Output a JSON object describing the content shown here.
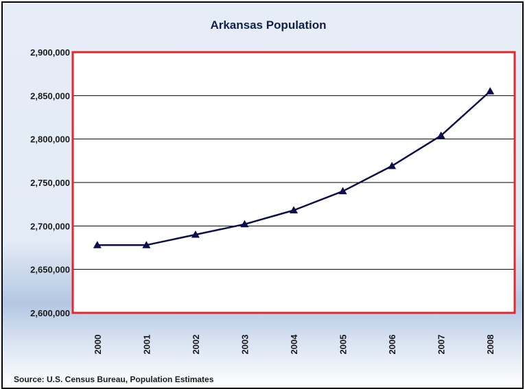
{
  "chart_data": {
    "type": "line",
    "title": "Arkansas Population",
    "xlabel": "",
    "ylabel": "",
    "categories": [
      "2000",
      "2001",
      "2002",
      "2003",
      "2004",
      "2005",
      "2006",
      "2007",
      "2008"
    ],
    "series": [
      {
        "values": [
          2678000,
          2678000,
          2690000,
          2702000,
          2718000,
          2740000,
          2769000,
          2804000,
          2855000
        ],
        "color": "#0d0d4d",
        "marker": "triangle"
      }
    ],
    "ylim": [
      2600000,
      2900000
    ],
    "yticks": [
      2600000,
      2650000,
      2700000,
      2750000,
      2800000,
      2850000,
      2900000
    ],
    "ytick_labels": [
      "2,600,000",
      "2,650,000",
      "2,700,000",
      "2,750,000",
      "2,800,000",
      "2,850,000",
      "2,900,000"
    ],
    "grid": true,
    "legend": "none",
    "plot_border_color": "#e3272f",
    "source": "Source: U.S. Census Bureau, Population Estimates"
  }
}
